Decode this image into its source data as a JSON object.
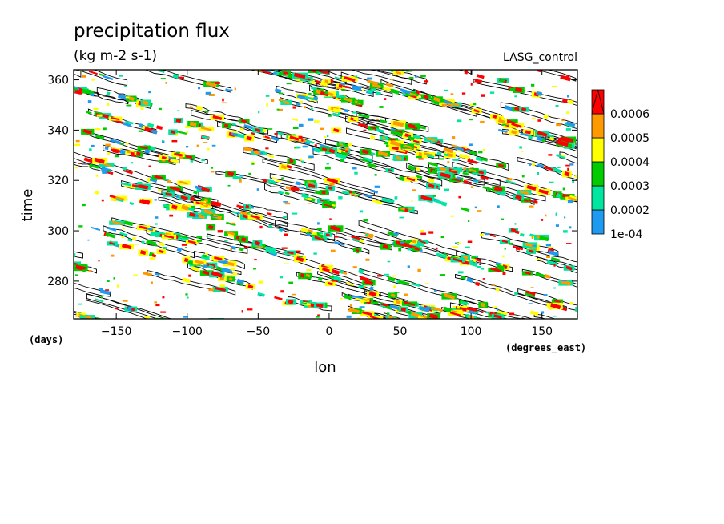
{
  "chart_data": {
    "type": "heatmap",
    "title": "precipitation flux",
    "units": "(kg m-2 s-1)",
    "run_label": "LASG_control",
    "xlabel": "lon",
    "ylabel": "time",
    "x_units": "(degrees_east)",
    "y_units": "(days)",
    "xlim": [
      -180,
      175
    ],
    "ylim": [
      265,
      364
    ],
    "x_ticks": [
      -150,
      -100,
      -50,
      0,
      50,
      100,
      150
    ],
    "y_ticks": [
      280,
      300,
      320,
      340,
      360
    ],
    "colorbar": {
      "levels": [
        0.0001,
        0.0002,
        0.0003,
        0.0004,
        0.0005,
        0.0006
      ],
      "labels": [
        "1e-04",
        "0.0002",
        "0.0003",
        "0.0004",
        "0.0005",
        "0.0006"
      ],
      "colors": [
        "#1e9bf0",
        "#00e5a0",
        "#00cc00",
        "#ffff00",
        "#ff9900",
        "#ff0000"
      ],
      "extend": "max"
    },
    "contour_color": "#000000",
    "pattern": "eastward-propagating precipitation streaks; slope about -0.13 days per degree longitude"
  }
}
